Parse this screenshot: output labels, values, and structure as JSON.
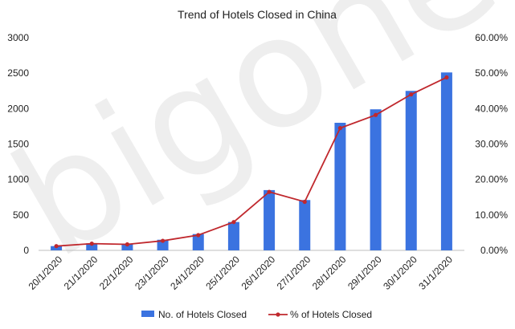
{
  "chart_data": {
    "type": "bar",
    "title": "Trend of Hotels Closed in China",
    "categories": [
      "20/1/2020",
      "21/1/2020",
      "22/1/2020",
      "23/1/2020",
      "24/1/2020",
      "25/1/2020",
      "26/1/2020",
      "27/1/2020",
      "28/1/2020",
      "29/1/2020",
      "30/1/2020",
      "31/1/2020"
    ],
    "series": [
      {
        "name": "No. of Hotels Closed",
        "type": "bar",
        "axis": "left",
        "color": "#3b73e0",
        "values": [
          60,
          100,
          95,
          150,
          230,
          400,
          850,
          710,
          1800,
          1990,
          2250,
          2510
        ]
      },
      {
        "name": "% of Hotels Closed",
        "type": "line",
        "axis": "right",
        "color": "#c0282d",
        "values": [
          0.012,
          0.019,
          0.017,
          0.027,
          0.043,
          0.08,
          0.165,
          0.137,
          0.345,
          0.382,
          0.44,
          0.488
        ]
      }
    ],
    "y_left": {
      "min": 0,
      "max": 3000,
      "ticks": [
        0,
        500,
        1000,
        1500,
        2000,
        2500,
        3000
      ]
    },
    "y_right": {
      "min": 0,
      "max": 0.6,
      "ticks": [
        "0.00%",
        "10.00%",
        "20.00%",
        "30.00%",
        "40.00%",
        "50.00%",
        "60.00%"
      ]
    },
    "grid": false,
    "legend_position": "bottom"
  },
  "watermark": "bigone"
}
